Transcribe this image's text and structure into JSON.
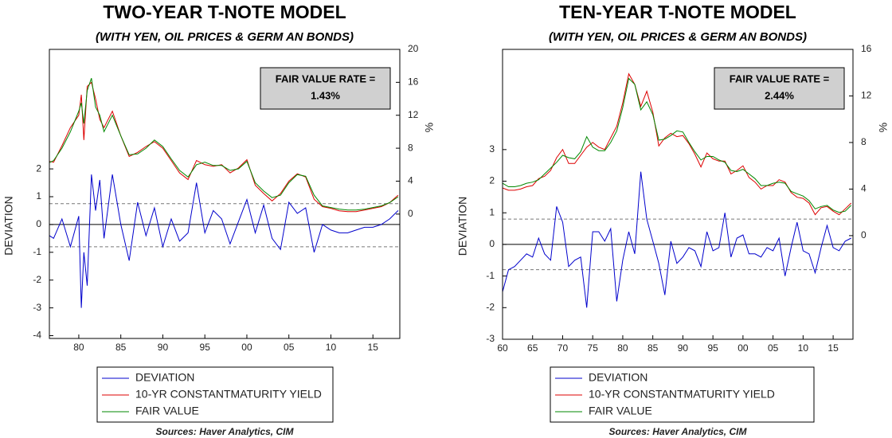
{
  "chart_data": [
    {
      "type": "line",
      "title": "TWO-YEAR T-NOTE MODEL",
      "subtitle": "(WITH YEN, OIL PRICES & GERM AN BONDS)",
      "annotation": [
        "FAIR VALUE RATE =",
        "1.43%"
      ],
      "ylabel": "DEVIATION",
      "y2label": "%",
      "source": "Sources:  Haver Analytics, CIM",
      "xlim": [
        1976.5,
        2018.2
      ],
      "xticks": [
        {
          "value": 1980,
          "label": "80"
        },
        {
          "value": 1985,
          "label": "85"
        },
        {
          "value": 1990,
          "label": "90"
        },
        {
          "value": 1995,
          "label": "95"
        },
        {
          "value": 2000,
          "label": "00"
        },
        {
          "value": 2005,
          "label": "05"
        },
        {
          "value": 2010,
          "label": "10"
        },
        {
          "value": 2015,
          "label": "15"
        }
      ],
      "ylim": [
        -4.1,
        6.3
      ],
      "yticks": [
        -4,
        -3,
        -2,
        -1,
        0,
        1,
        2
      ],
      "y2lim": [
        -15.1,
        20
      ],
      "y2ticks": [
        0,
        4,
        8,
        12,
        16,
        20
      ],
      "reference_lines": [
        0.75,
        -0.8
      ],
      "x": [
        1976,
        1977,
        1978,
        1979,
        1980,
        1980.3,
        1980.6,
        1981,
        1981.5,
        1982,
        1982.5,
        1983,
        1984,
        1985,
        1986,
        1987,
        1988,
        1989,
        1990,
        1991,
        1992,
        1993,
        1994,
        1995,
        1996,
        1997,
        1998,
        1999,
        2000,
        2001,
        2002,
        2003,
        2004,
        2005,
        2006,
        2007,
        2008,
        2009,
        2010,
        2011,
        2012,
        2013,
        2014,
        2015,
        2016,
        2017,
        2018
      ],
      "series": [
        {
          "name": "DEVIATION",
          "color": "#0000cc",
          "axis": "y",
          "values": [
            -0.3,
            -0.5,
            0.2,
            -0.8,
            0.3,
            -3.0,
            -1.0,
            -2.2,
            1.8,
            0.5,
            1.6,
            -0.5,
            1.8,
            0.0,
            -1.3,
            0.8,
            -0.4,
            0.6,
            -0.8,
            0.2,
            -0.6,
            -0.3,
            1.5,
            -0.3,
            0.5,
            0.2,
            -0.7,
            0.1,
            0.9,
            -0.3,
            0.7,
            -0.5,
            -0.9,
            0.8,
            0.4,
            0.6,
            -1.0,
            0.0,
            -0.2,
            -0.3,
            -0.3,
            -0.2,
            -0.1,
            -0.1,
            0.0,
            0.2,
            0.5
          ]
        },
        {
          "name": "10-YR CONSTANTMATURITY YIELD",
          "color": "#dd0000",
          "axis": "y2",
          "values": [
            6.5,
            6.3,
            8.3,
            10.5,
            12.0,
            14.5,
            9.0,
            15.5,
            16.0,
            14.0,
            11.5,
            10.5,
            12.5,
            9.5,
            7.0,
            7.5,
            8.2,
            8.8,
            8.0,
            6.5,
            5.0,
            4.2,
            6.5,
            6.0,
            5.8,
            6.0,
            5.0,
            5.6,
            6.6,
            3.5,
            2.5,
            1.6,
            2.5,
            4.0,
            4.9,
            4.5,
            1.8,
            0.9,
            0.7,
            0.4,
            0.3,
            0.3,
            0.5,
            0.7,
            0.9,
            1.4,
            2.3
          ]
        },
        {
          "name": "FAIR VALUE",
          "color": "#008800",
          "axis": "y2",
          "values": [
            6.0,
            6.5,
            8.0,
            10.0,
            12.5,
            13.5,
            11.0,
            15.0,
            16.5,
            13.0,
            12.0,
            10.0,
            12.0,
            9.5,
            7.2,
            7.3,
            8.0,
            9.0,
            8.2,
            6.7,
            5.3,
            4.5,
            6.0,
            6.3,
            5.9,
            5.9,
            5.3,
            5.5,
            6.4,
            3.8,
            2.8,
            2.0,
            2.3,
            3.8,
            4.8,
            4.6,
            2.3,
            1.0,
            0.8,
            0.6,
            0.5,
            0.5,
            0.6,
            0.8,
            1.0,
            1.4,
            2.1
          ]
        }
      ]
    },
    {
      "type": "line",
      "title": "TEN-YEAR T-NOTE MODEL",
      "subtitle": "(WITH YEN, OIL PRICES & GERM AN BONDS)",
      "annotation": [
        "FAIR VALUE RATE =",
        "2.44%"
      ],
      "ylabel": "DEVIATION",
      "y2label": "%",
      "source": "Sources:  Haver Analytics, CIM",
      "xlim": [
        1960,
        2018.3
      ],
      "xticks": [
        {
          "value": 1960,
          "label": "60"
        },
        {
          "value": 1965,
          "label": "65"
        },
        {
          "value": 1970,
          "label": "70"
        },
        {
          "value": 1975,
          "label": "75"
        },
        {
          "value": 1980,
          "label": "80"
        },
        {
          "value": 1985,
          "label": "85"
        },
        {
          "value": 1990,
          "label": "90"
        },
        {
          "value": 1995,
          "label": "95"
        },
        {
          "value": 2000,
          "label": "00"
        },
        {
          "value": 2005,
          "label": "05"
        },
        {
          "value": 2010,
          "label": "10"
        },
        {
          "value": 2015,
          "label": "15"
        }
      ],
      "ylim": [
        -3,
        6.17
      ],
      "yticks": [
        -3,
        -2,
        -1,
        0,
        1,
        2,
        3
      ],
      "y2lim": [
        -8.9,
        16
      ],
      "y2ticks": [
        0,
        4,
        8,
        12,
        16
      ],
      "reference_lines": [
        0.8,
        -0.8
      ],
      "x": [
        1960,
        1961,
        1962,
        1963,
        1964,
        1965,
        1966,
        1967,
        1968,
        1969,
        1970,
        1971,
        1972,
        1973,
        1974,
        1975,
        1976,
        1977,
        1978,
        1979,
        1980,
        1981,
        1982,
        1983,
        1984,
        1985,
        1986,
        1987,
        1988,
        1989,
        1990,
        1991,
        1992,
        1993,
        1994,
        1995,
        1996,
        1997,
        1998,
        1999,
        2000,
        2001,
        2002,
        2003,
        2004,
        2005,
        2006,
        2007,
        2008,
        2009,
        2010,
        2011,
        2012,
        2013,
        2014,
        2015,
        2016,
        2017,
        2018
      ],
      "series": [
        {
          "name": "DEVIATION",
          "color": "#0000cc",
          "axis": "y",
          "values": [
            -1.5,
            -0.8,
            -0.7,
            -0.5,
            -0.3,
            -0.4,
            0.2,
            -0.3,
            -0.5,
            1.2,
            0.7,
            -0.7,
            -0.5,
            -0.4,
            -2.0,
            0.4,
            0.4,
            0.1,
            0.5,
            -1.8,
            -0.5,
            0.4,
            -0.3,
            2.3,
            0.8,
            0.1,
            -0.6,
            -1.6,
            0.1,
            -0.6,
            -0.4,
            -0.1,
            -0.2,
            -0.7,
            0.4,
            -0.2,
            -0.1,
            1.0,
            -0.4,
            0.2,
            0.3,
            -0.3,
            -0.3,
            -0.4,
            -0.1,
            -0.2,
            0.2,
            -1.0,
            -0.1,
            0.7,
            -0.2,
            -0.3,
            -0.9,
            -0.1,
            0.6,
            -0.1,
            -0.2,
            0.1,
            0.2
          ]
        },
        {
          "name": "10-YR CONSTANTMATURITY YIELD",
          "color": "#dd0000",
          "axis": "y2",
          "values": [
            4.1,
            3.9,
            3.9,
            4.0,
            4.2,
            4.3,
            4.9,
            5.1,
            5.6,
            6.7,
            7.4,
            6.2,
            6.2,
            6.9,
            7.6,
            8.0,
            7.6,
            7.4,
            8.4,
            9.4,
            11.4,
            13.9,
            13.0,
            11.1,
            12.4,
            10.6,
            7.7,
            8.4,
            8.8,
            8.5,
            8.6,
            7.9,
            7.0,
            5.9,
            7.1,
            6.6,
            6.4,
            6.4,
            5.3,
            5.6,
            6.0,
            5.0,
            4.6,
            4.0,
            4.3,
            4.3,
            4.8,
            4.6,
            3.7,
            3.3,
            3.2,
            2.8,
            1.8,
            2.4,
            2.5,
            2.1,
            1.8,
            2.3,
            2.8
          ]
        },
        {
          "name": "FAIR VALUE",
          "color": "#008800",
          "axis": "y2",
          "values": [
            4.5,
            4.2,
            4.2,
            4.3,
            4.5,
            4.6,
            4.8,
            5.3,
            5.8,
            6.3,
            6.9,
            6.7,
            6.6,
            7.2,
            8.5,
            7.6,
            7.3,
            7.3,
            8.0,
            9.0,
            11.0,
            13.5,
            13.0,
            10.8,
            11.5,
            10.4,
            8.2,
            8.3,
            8.6,
            9.0,
            8.9,
            8.0,
            7.2,
            6.5,
            6.8,
            6.8,
            6.5,
            6.3,
            5.6,
            5.5,
            5.7,
            5.3,
            4.9,
            4.3,
            4.3,
            4.5,
            4.6,
            4.5,
            3.8,
            3.6,
            3.4,
            3.0,
            2.3,
            2.5,
            2.6,
            2.2,
            2.0,
            2.1,
            2.6
          ]
        }
      ]
    }
  ]
}
